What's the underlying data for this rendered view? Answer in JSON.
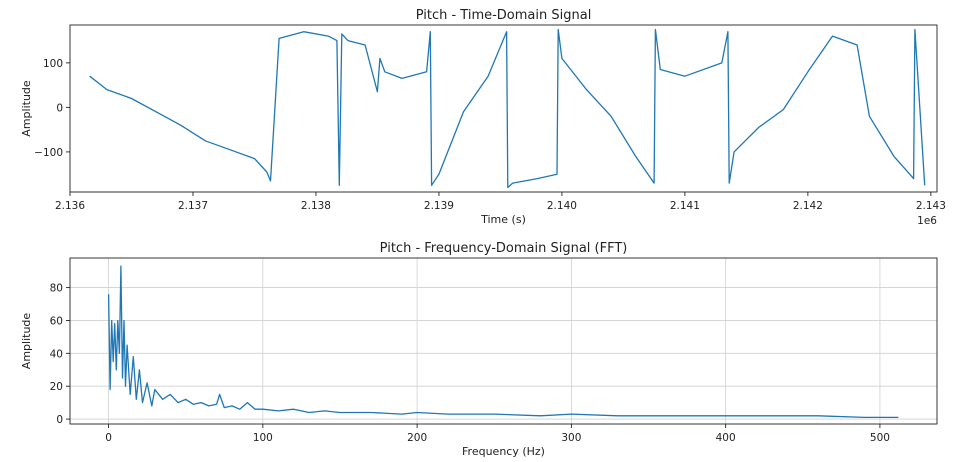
{
  "chart_data": [
    {
      "type": "line",
      "title": "Pitch - Time-Domain Signal",
      "xlabel": "Time (s)",
      "ylabel": "Amplitude",
      "x_offset_label": "1e6",
      "xlim": [
        2136000,
        2143050
      ],
      "ylim": [
        -190,
        185
      ],
      "x_ticks": [
        2136000,
        2137000,
        2138000,
        2139000,
        2140000,
        2141000,
        2142000,
        2143000
      ],
      "x_tick_labels": [
        "2.136",
        "2.137",
        "2.138",
        "2.139",
        "2.140",
        "2.141",
        "2.142",
        "2.143"
      ],
      "y_ticks": [
        100,
        0,
        -100
      ],
      "y_tick_labels": [
        "100",
        "0",
        "−100"
      ],
      "grid": false,
      "color": "#1f77b4",
      "x": [
        2136160,
        2136300,
        2136500,
        2136700,
        2136900,
        2137100,
        2137300,
        2137500,
        2137600,
        2137630,
        2137700,
        2137900,
        2138100,
        2138170,
        2138190,
        2138210,
        2138260,
        2138400,
        2138500,
        2138520,
        2138560,
        2138700,
        2138900,
        2138930,
        2138940,
        2139000,
        2139200,
        2139400,
        2139550,
        2139560,
        2139600,
        2139800,
        2139960,
        2139970,
        2140000,
        2140200,
        2140400,
        2140600,
        2140750,
        2140760,
        2140800,
        2141000,
        2141300,
        2141350,
        2141360,
        2141400,
        2141600,
        2141800,
        2142000,
        2142200,
        2142400,
        2142500,
        2142700,
        2142860,
        2142870,
        2142950
      ],
      "y": [
        70,
        40,
        20,
        -10,
        -40,
        -75,
        -95,
        -115,
        -145,
        -165,
        155,
        170,
        160,
        150,
        -175,
        165,
        150,
        140,
        35,
        110,
        80,
        65,
        80,
        170,
        -175,
        -150,
        -10,
        70,
        170,
        -180,
        -170,
        -160,
        -150,
        175,
        110,
        40,
        -20,
        -110,
        -170,
        175,
        85,
        70,
        100,
        170,
        -170,
        -100,
        -45,
        -5,
        80,
        160,
        140,
        -20,
        -110,
        -160,
        175,
        -175
      ]
    },
    {
      "type": "line",
      "title": "Pitch - Frequency-Domain Signal (FFT)",
      "xlabel": "Frequency (Hz)",
      "ylabel": "Amplitude",
      "xlim": [
        -25,
        537
      ],
      "ylim": [
        -3,
        98
      ],
      "x_ticks": [
        0,
        100,
        200,
        300,
        400,
        500
      ],
      "y_ticks": [
        0,
        20,
        40,
        60,
        80
      ],
      "grid": true,
      "color": "#1f77b4",
      "x": [
        0,
        1,
        2,
        3,
        4,
        5,
        6,
        7,
        8,
        9,
        10,
        11,
        12,
        14,
        16,
        18,
        20,
        22,
        25,
        28,
        30,
        35,
        40,
        45,
        50,
        55,
        60,
        65,
        70,
        72,
        75,
        80,
        85,
        90,
        95,
        100,
        110,
        120,
        130,
        140,
        150,
        170,
        190,
        200,
        220,
        250,
        280,
        300,
        330,
        360,
        400,
        430,
        460,
        490,
        512
      ],
      "y": [
        76,
        18,
        60,
        35,
        58,
        30,
        60,
        40,
        93,
        25,
        60,
        20,
        45,
        15,
        38,
        12,
        30,
        10,
        22,
        8,
        18,
        12,
        15,
        10,
        12,
        9,
        10,
        8,
        9,
        15,
        7,
        8,
        6,
        10,
        6,
        6,
        5,
        6,
        4,
        5,
        4,
        4,
        3,
        4,
        3,
        3,
        2,
        3,
        2,
        2,
        2,
        2,
        2,
        1,
        1
      ]
    }
  ]
}
